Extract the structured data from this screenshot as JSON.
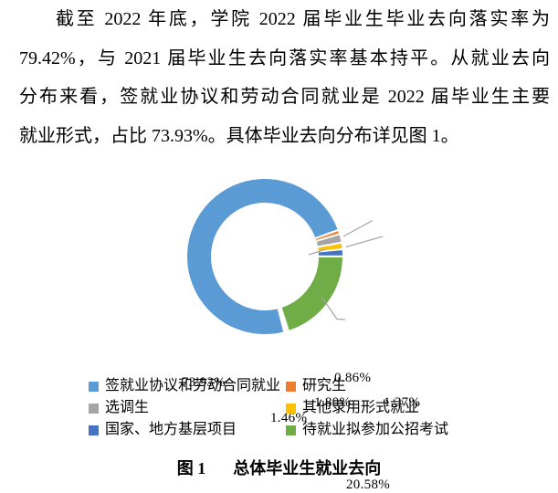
{
  "document": {
    "paragraph_lines": [
      "截至 2022 年底，学院 2022 届毕业生毕业去向落实率为",
      "79.42%，与 2021 届毕业生去向落实率基本持平。从就业去向",
      "分布来看，签就业协议和劳动合同就业是 2022 届毕业生主要",
      "就业形式，占比 73.93%。具体毕业去向分布详见图 1。"
    ],
    "caption": {
      "figure_label": "图 1",
      "title": "总体毕业生就业去向"
    }
  },
  "chart_data": {
    "type": "pie",
    "subtype": "donut",
    "title": "图 1 总体毕业生就业去向",
    "unit": "%",
    "start_angle_deg": 164,
    "legend": {
      "position": "bottom",
      "columns": 2,
      "order": "row-major"
    },
    "slices": [
      {
        "name": "签就业协议和劳动合同就业",
        "value": 73.93,
        "label": "73.93%",
        "color": "#5B9BD5"
      },
      {
        "name": "研究生",
        "value": 0.86,
        "label": "0.86%",
        "color": "#ED7D31"
      },
      {
        "name": "选调生",
        "value": 1.8,
        "label": "1.80%",
        "color": "#A5A5A5"
      },
      {
        "name": "其他录用形式就业",
        "value": 1.37,
        "label": "1.37%",
        "color": "#FFC000"
      },
      {
        "name": "国家、地方基层项目",
        "value": 1.46,
        "label": "1.46%",
        "color": "#4472C4"
      },
      {
        "name": "待就业拟参加公招考试",
        "value": 20.58,
        "label": "20.58%",
        "color": "#70AD47"
      }
    ]
  }
}
